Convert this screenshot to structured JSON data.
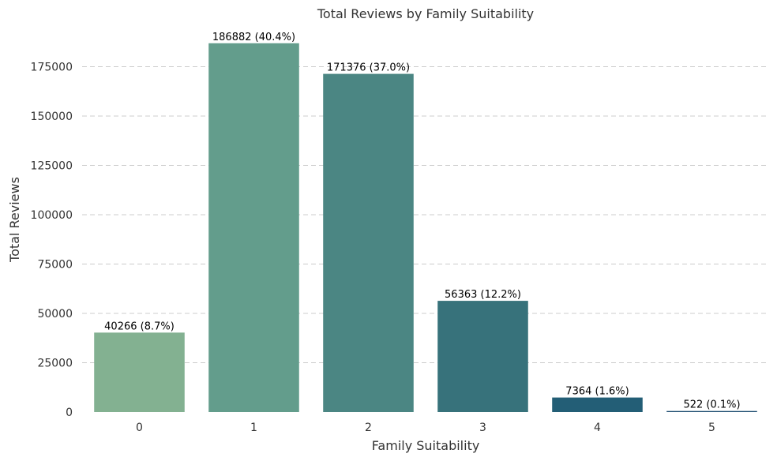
{
  "chart_data": {
    "type": "bar",
    "title": "Total Reviews by Family Suitability",
    "xlabel": "Family Suitability",
    "ylabel": "Total Reviews",
    "categories": [
      "0",
      "1",
      "2",
      "3",
      "4",
      "5"
    ],
    "values": [
      40266,
      186882,
      171376,
      56363,
      7364,
      522
    ],
    "data_labels": [
      "40266 (8.7%)",
      "186882 (40.4%)",
      "171376 (37.0%)",
      "56363 (12.2%)",
      "7364 (1.6%)",
      "522 (0.1%)"
    ],
    "ylim": [
      0,
      190000
    ],
    "yticks": [
      0,
      25000,
      50000,
      75000,
      100000,
      125000,
      150000,
      175000
    ],
    "ytick_labels": [
      "0",
      "25000",
      "50000",
      "75000",
      "100000",
      "125000",
      "150000",
      "175000"
    ],
    "grid": "horizontal-dashed",
    "legend": "none",
    "colors": [
      "#83b191",
      "#639d8c",
      "#4b8683",
      "#37727b",
      "#235e76",
      "#1a4a6e"
    ]
  }
}
